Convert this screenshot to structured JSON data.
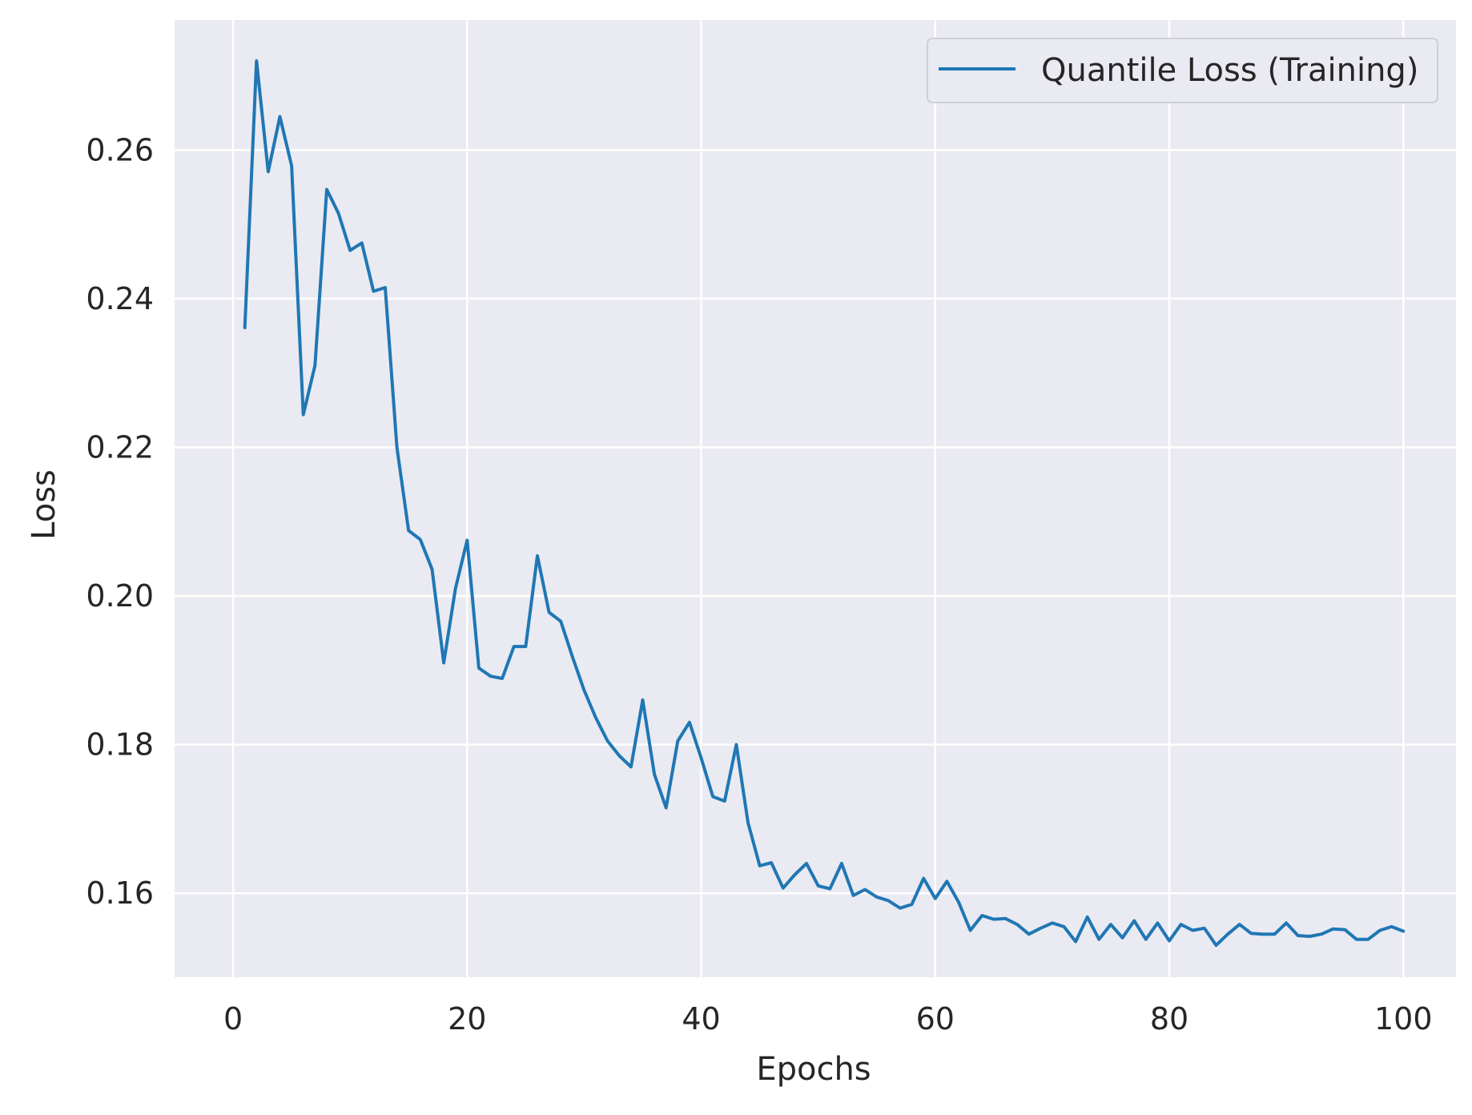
{
  "chart_data": {
    "type": "line",
    "title": "",
    "xlabel": "Epochs",
    "ylabel": "Loss",
    "xlim": [
      -5,
      104.5
    ],
    "ylim": [
      0.1487,
      0.2775
    ],
    "xticks": [
      0,
      20,
      40,
      60,
      80,
      100
    ],
    "yticks": [
      0.16,
      0.18,
      0.2,
      0.22,
      0.24,
      0.26
    ],
    "xtick_labels": [
      "0",
      "20",
      "40",
      "60",
      "80",
      "100"
    ],
    "ytick_labels": [
      "0.16",
      "0.18",
      "0.20",
      "0.22",
      "0.24",
      "0.26"
    ],
    "grid": true,
    "legend_position": "top-right",
    "colors": {
      "plot_background": "#eaeaf2",
      "grid": "#ffffff",
      "line": "#1f77b4",
      "text": "#262626"
    },
    "series": [
      {
        "name": "Quantile Loss (Training)",
        "x": [
          1,
          2,
          3,
          4,
          5,
          6,
          7,
          8,
          9,
          10,
          11,
          12,
          13,
          14,
          15,
          16,
          17,
          18,
          19,
          20,
          21,
          22,
          23,
          24,
          25,
          26,
          27,
          28,
          29,
          30,
          31,
          32,
          33,
          34,
          35,
          36,
          37,
          38,
          39,
          40,
          41,
          42,
          43,
          44,
          45,
          46,
          47,
          48,
          49,
          50,
          51,
          52,
          53,
          54,
          55,
          56,
          57,
          58,
          59,
          60,
          61,
          62,
          63,
          64,
          65,
          66,
          67,
          68,
          69,
          70,
          71,
          72,
          73,
          74,
          75,
          76,
          77,
          78,
          79,
          80,
          81,
          82,
          83,
          84,
          85,
          86,
          87,
          88,
          89,
          90,
          91,
          92,
          93,
          94,
          95,
          96,
          97,
          98,
          99,
          100
        ],
        "values": [
          0.2361,
          0.272,
          0.2571,
          0.2645,
          0.2579,
          0.2244,
          0.231,
          0.2547,
          0.2515,
          0.2465,
          0.2475,
          0.241,
          0.2415,
          0.22,
          0.2088,
          0.2076,
          0.2036,
          0.191,
          0.201,
          0.2075,
          0.1903,
          0.1892,
          0.1889,
          0.1932,
          0.1932,
          0.2054,
          0.1978,
          0.1966,
          0.1918,
          0.1873,
          0.1836,
          0.1805,
          0.1785,
          0.177,
          0.186,
          0.176,
          0.1715,
          0.1805,
          0.183,
          0.1782,
          0.173,
          0.1724,
          0.18,
          0.1695,
          0.1637,
          0.1641,
          0.1607,
          0.1625,
          0.164,
          0.161,
          0.1606,
          0.164,
          0.1597,
          0.1605,
          0.1595,
          0.159,
          0.158,
          0.1585,
          0.162,
          0.1593,
          0.1616,
          0.1588,
          0.155,
          0.157,
          0.1565,
          0.1566,
          0.1558,
          0.1545,
          0.1553,
          0.156,
          0.1555,
          0.1535,
          0.1568,
          0.1538,
          0.1558,
          0.154,
          0.1563,
          0.1538,
          0.156,
          0.1536,
          0.1558,
          0.155,
          0.1553,
          0.153,
          0.1545,
          0.1558,
          0.1546,
          0.1545,
          0.1545,
          0.156,
          0.1543,
          0.1542,
          0.1545,
          0.1552,
          0.1551,
          0.1538,
          0.1538,
          0.155,
          0.1555,
          0.1549
        ]
      }
    ]
  }
}
